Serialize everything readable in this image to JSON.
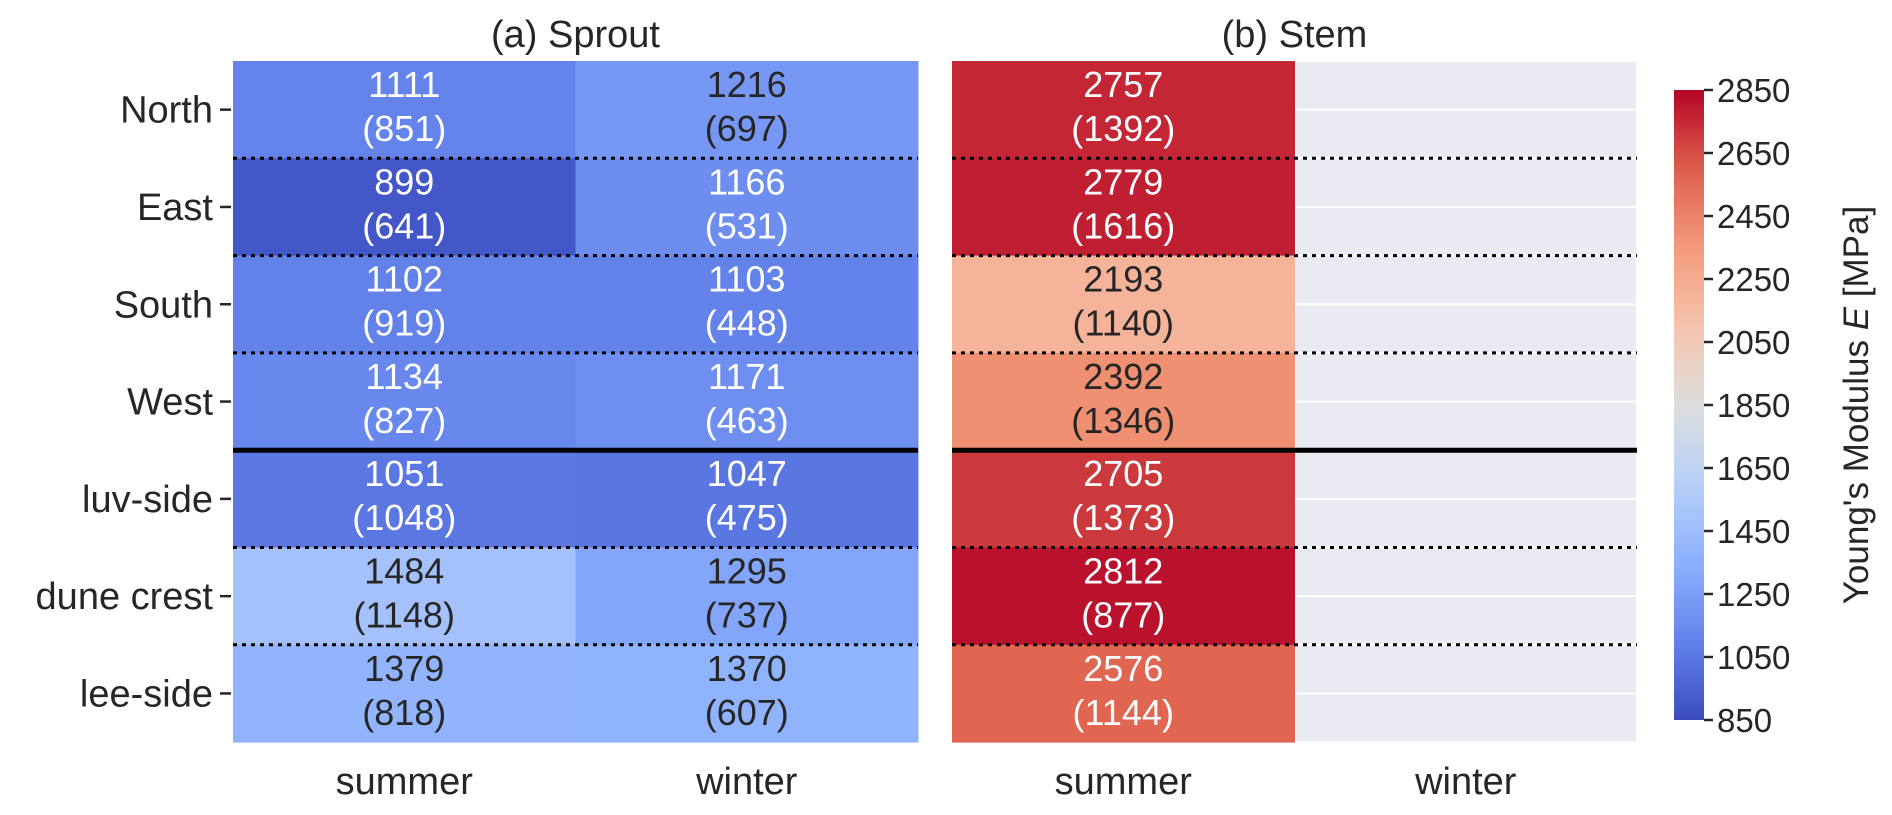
{
  "chart_data": {
    "type": "heatmap",
    "colorbar": {
      "label_prefix": "Young's Modulus ",
      "label_var": "E",
      "label_suffix": " [MPa]",
      "min": 850,
      "max": 2850,
      "ticks": [
        "850",
        "1050",
        "1250",
        "1450",
        "1650",
        "1850",
        "2050",
        "2250",
        "2450",
        "2650",
        "2850"
      ],
      "colormap": "coolwarm"
    },
    "rows": [
      "North",
      "East",
      "South",
      "West",
      "luv-side",
      "dune crest",
      "lee-side"
    ],
    "panels": [
      {
        "title": "(a) Sprout",
        "columns": [
          "summer",
          "winter"
        ],
        "cells": [
          [
            {
              "value": "1111",
              "sd": "(851)"
            },
            {
              "value": "1216",
              "sd": "(697)"
            }
          ],
          [
            {
              "value": "899",
              "sd": "(641)"
            },
            {
              "value": "1166",
              "sd": "(531)"
            }
          ],
          [
            {
              "value": "1102",
              "sd": "(919)"
            },
            {
              "value": "1103",
              "sd": "(448)"
            }
          ],
          [
            {
              "value": "1134",
              "sd": "(827)"
            },
            {
              "value": "1171",
              "sd": "(463)"
            }
          ],
          [
            {
              "value": "1051",
              "sd": "(1048)"
            },
            {
              "value": "1047",
              "sd": "(475)"
            }
          ],
          [
            {
              "value": "1484",
              "sd": "(1148)"
            },
            {
              "value": "1295",
              "sd": "(737)"
            }
          ],
          [
            {
              "value": "1379",
              "sd": "(818)"
            },
            {
              "value": "1370",
              "sd": "(607)"
            }
          ]
        ]
      },
      {
        "title": "(b) Stem",
        "columns": [
          "summer",
          "winter"
        ],
        "cells": [
          [
            {
              "value": "2757",
              "sd": "(1392)"
            },
            null
          ],
          [
            {
              "value": "2779",
              "sd": "(1616)"
            },
            null
          ],
          [
            {
              "value": "2193",
              "sd": "(1140)"
            },
            null
          ],
          [
            {
              "value": "2392",
              "sd": "(1346)"
            },
            null
          ],
          [
            {
              "value": "2705",
              "sd": "(1373)"
            },
            null
          ],
          [
            {
              "value": "2812",
              "sd": "(877)"
            },
            null
          ],
          [
            {
              "value": "2576",
              "sd": "(1144)"
            },
            null
          ]
        ]
      }
    ],
    "separators": {
      "dotted_after_rows": [
        0,
        1,
        2,
        4,
        5
      ],
      "solid_after_rows": [
        3
      ]
    },
    "missing_color": "#eaeaf2"
  }
}
